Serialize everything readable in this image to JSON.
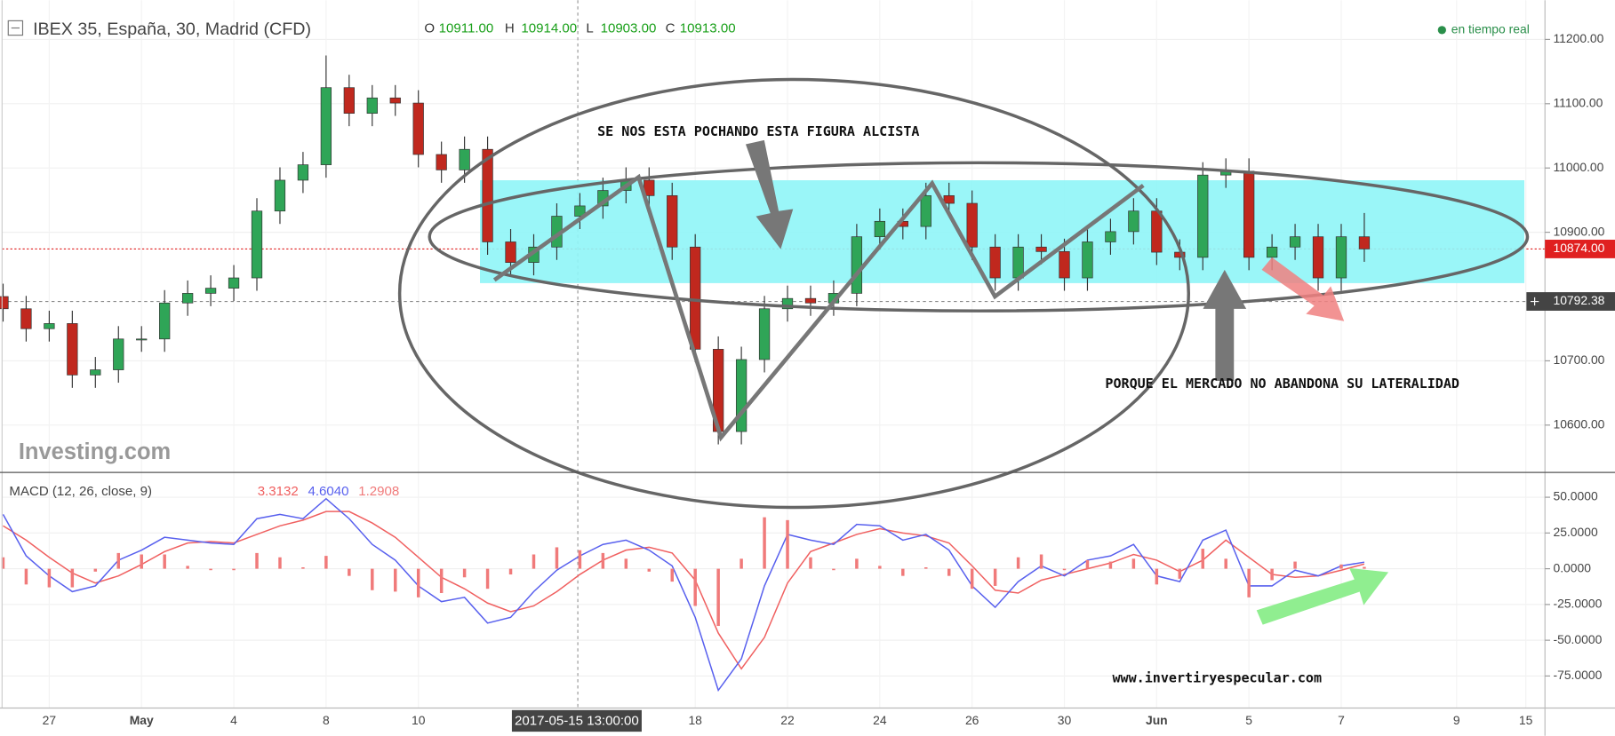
{
  "chart_data": [
    {
      "type": "candlestick",
      "title": "IBEX 35, España, 30, Madrid (CFD)",
      "ohlc": [
        {
          "key": "O",
          "value": "10911.00"
        },
        {
          "key": "H",
          "value": "10914.00"
        },
        {
          "key": "L",
          "value": "10903.00"
        },
        {
          "key": "C",
          "value": "10913.00"
        }
      ],
      "status": "en tiempo real",
      "watermark": "Investing.com",
      "annotations": [
        "SE NOS ESTA POCHANDO ESTA FIGURA ALCISTA",
        "PORQUE EL MERCADO NO ABANDONA SU LATERALIDAD",
        "www.invertiryespecular.com"
      ],
      "crosshair_time": "2017-05-15 13:00:00",
      "crosshair_price": {
        "value": 10792.38,
        "label": "10792.38"
      },
      "last_price": {
        "value": 10874,
        "label": "10874.00"
      },
      "categories": [
        null,
        null,
        "27",
        null,
        null,
        null,
        "May",
        null,
        null,
        null,
        "4",
        null,
        null,
        null,
        "8",
        null,
        null,
        null,
        "10",
        null,
        null,
        null,
        null,
        null,
        null,
        null,
        null,
        null,
        null,
        null,
        "18",
        null,
        null,
        null,
        "22",
        null,
        null,
        null,
        "24",
        null,
        null,
        null,
        "26",
        null,
        null,
        null,
        "30",
        null,
        null,
        null,
        "Jun",
        null,
        null,
        null,
        "5",
        null,
        null,
        null,
        "7",
        null,
        null,
        null,
        null,
        "9",
        null,
        null,
        "15"
      ],
      "open": [
        10800,
        10781,
        10750,
        10758,
        10678,
        10686,
        10734,
        10734,
        10790,
        10805,
        10813,
        10829,
        10933,
        10981,
        11005,
        11125,
        11085,
        11109,
        11101,
        11021,
        10997,
        11029,
        10885,
        10853,
        10877,
        10925,
        10941,
        10965,
        10981,
        10957,
        10877,
        10718,
        10590,
        10702,
        10781,
        10797,
        10790,
        10805,
        10893,
        10917,
        10909,
        10957,
        10945,
        10877,
        10829,
        10877,
        10870,
        10829,
        10885,
        10901,
        10933,
        10869,
        10861,
        10989,
        10995,
        10861,
        10877,
        10893,
        10829,
        10893,
        null,
        null,
        null,
        null,
        null,
        null,
        null
      ],
      "high": [
        10820,
        10801,
        10778,
        10778,
        10706,
        10754,
        10754,
        10810,
        10825,
        10833,
        10849,
        10953,
        11001,
        11025,
        11175,
        11145,
        11129,
        11129,
        11121,
        11041,
        11049,
        11049,
        10905,
        10897,
        10945,
        10961,
        10985,
        11001,
        11001,
        10977,
        10897,
        10738,
        10722,
        10801,
        10817,
        10817,
        10825,
        10913,
        10937,
        10937,
        10977,
        10977,
        10965,
        10897,
        10897,
        10897,
        10890,
        10905,
        10921,
        10953,
        10953,
        10889,
        11009,
        11015,
        11015,
        10897,
        10913,
        10913,
        10913,
        10930,
        null,
        null,
        null,
        null,
        null,
        null,
        null
      ],
      "low": [
        10761,
        10730,
        10730,
        10658,
        10658,
        10666,
        10714,
        10714,
        10770,
        10785,
        10793,
        10809,
        10913,
        10961,
        10985,
        11065,
        11065,
        11081,
        11001,
        10977,
        10977,
        10865,
        10833,
        10833,
        10857,
        10905,
        10921,
        10945,
        10937,
        10857,
        10698,
        10570,
        10570,
        10682,
        10761,
        10770,
        10770,
        10785,
        10873,
        10889,
        10889,
        10925,
        10857,
        10809,
        10809,
        10850,
        10809,
        10809,
        10865,
        10881,
        10849,
        10841,
        10841,
        10969,
        10841,
        10841,
        10857,
        10809,
        10809,
        10854,
        null,
        null,
        null,
        null,
        null,
        null,
        null
      ],
      "close": [
        10781,
        10750,
        10758,
        10678,
        10686,
        10734,
        10734,
        10790,
        10805,
        10813,
        10829,
        10933,
        10981,
        11005,
        11125,
        11085,
        11109,
        11101,
        11021,
        10997,
        11029,
        10885,
        10853,
        10877,
        10925,
        10941,
        10965,
        10981,
        10957,
        10877,
        10718,
        10590,
        10702,
        10781,
        10797,
        10790,
        10805,
        10893,
        10917,
        10909,
        10957,
        10945,
        10877,
        10829,
        10877,
        10870,
        10829,
        10885,
        10901,
        10933,
        10869,
        10861,
        10989,
        10995,
        10861,
        10877,
        10893,
        10829,
        10893,
        10874,
        null,
        null,
        null,
        null,
        null,
        null,
        null
      ],
      "up_color": "#2fa557",
      "down_color": "#c0281e",
      "ylim": [
        10528,
        11261
      ],
      "yticks": [
        {
          "value": 10600,
          "label": "10600.00"
        },
        {
          "value": 10700,
          "label": "10700.00"
        },
        {
          "value": 10900,
          "label": "10900.00"
        },
        {
          "value": 11000,
          "label": "11000.00"
        },
        {
          "value": 11100,
          "label": "11100.00"
        },
        {
          "value": 11200,
          "label": "11200.00"
        }
      ],
      "grid": true
    },
    {
      "type": "line",
      "title": "MACD (12, 26, close, 9)",
      "legend_values": [
        "3.3132",
        "4.6040",
        "1.2908"
      ],
      "series": [
        {
          "color": "#f06060",
          "style": "line",
          "values": [
            30,
            20,
            8,
            -3,
            -10,
            -5,
            3,
            12,
            18,
            19,
            18,
            24,
            30,
            34,
            40,
            40,
            32,
            22,
            8,
            -6,
            -14,
            -24,
            -30,
            -26,
            -16,
            -4,
            6,
            13,
            15,
            11,
            -8,
            -45,
            -70,
            -48,
            -10,
            12,
            18,
            24,
            28,
            25,
            23,
            18,
            2,
            -15,
            -17,
            -8,
            -4,
            0,
            4,
            10,
            6,
            -2,
            6,
            20,
            8,
            -4,
            -6,
            -5,
            -1,
            3.3132
          ]
        },
        {
          "color": "#5860ee",
          "style": "line",
          "values": [
            38,
            9,
            -5,
            -16,
            -12,
            6,
            13,
            22,
            20,
            18,
            17,
            35,
            38,
            35,
            49,
            35,
            17,
            6,
            -12,
            -23,
            -20,
            -38,
            -34,
            -16,
            -1,
            9,
            17,
            20,
            13,
            2,
            -34,
            -85,
            -63,
            -12,
            24,
            20,
            17,
            31,
            30,
            20,
            24,
            13,
            -12,
            -27,
            -9,
            2,
            -5,
            6,
            9,
            17,
            -5,
            -9,
            20,
            27,
            -12,
            -12,
            -1,
            -5,
            2,
            4.604
          ]
        },
        {
          "color": "#f07a7a",
          "style": "bar",
          "values": [
            8,
            -11,
            -13,
            -13,
            -2,
            11,
            10,
            10,
            2,
            -1,
            -1,
            11,
            8,
            1,
            9,
            -5,
            -15,
            -16,
            -20,
            -17,
            -6,
            -14,
            -4,
            10,
            15,
            13,
            11,
            7,
            -2,
            -9,
            -26,
            -40,
            7,
            36,
            34,
            8,
            -1,
            7,
            2,
            -5,
            1,
            -5,
            -14,
            -12,
            8,
            10,
            -1,
            6,
            5,
            7,
            -11,
            -7,
            14,
            7,
            -20,
            -8,
            5,
            0,
            3,
            1.2908
          ]
        }
      ],
      "ylim": [
        -97.4,
        65.2
      ],
      "yticks": [
        {
          "value": -75,
          "label": "-75.0000"
        },
        {
          "value": -50,
          "label": "-50.0000"
        },
        {
          "value": -25,
          "label": "-25.0000"
        },
        {
          "value": 0,
          "label": "0.0000"
        },
        {
          "value": 25,
          "label": "25.0000"
        },
        {
          "value": 50,
          "label": "50.0000"
        }
      ],
      "grid": true
    }
  ]
}
